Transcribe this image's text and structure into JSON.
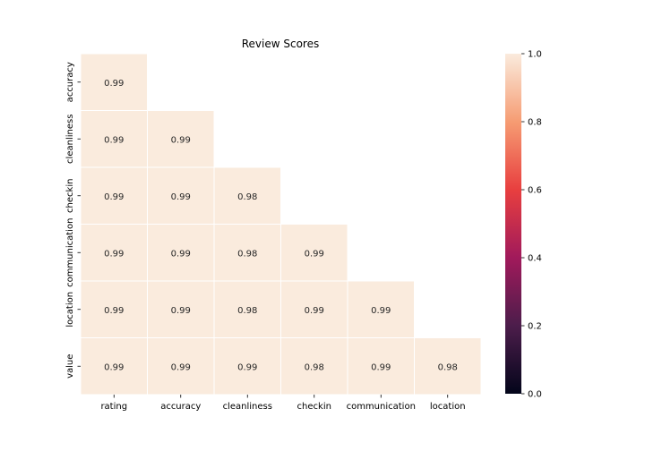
{
  "chart_data": {
    "type": "heatmap",
    "title": "Review Scores",
    "x_categories": [
      "rating",
      "accuracy",
      "cleanliness",
      "checkin",
      "communication",
      "location"
    ],
    "y_categories": [
      "accuracy",
      "cleanliness",
      "checkin",
      "communication",
      "location",
      "value"
    ],
    "values": [
      [
        0.99,
        null,
        null,
        null,
        null,
        null
      ],
      [
        0.99,
        0.99,
        null,
        null,
        null,
        null
      ],
      [
        0.99,
        0.99,
        0.98,
        null,
        null,
        null
      ],
      [
        0.99,
        0.99,
        0.98,
        0.99,
        null,
        null
      ],
      [
        0.99,
        0.99,
        0.98,
        0.99,
        0.99,
        null
      ],
      [
        0.99,
        0.99,
        0.99,
        0.98,
        0.99,
        0.98
      ]
    ],
    "value_labels": [
      [
        "0.99",
        "",
        "",
        "",
        "",
        ""
      ],
      [
        "0.99",
        "0.99",
        "",
        "",
        "",
        ""
      ],
      [
        "0.99",
        "0.99",
        "0.98",
        "",
        "",
        ""
      ],
      [
        "0.99",
        "0.99",
        "0.98",
        "0.99",
        "",
        ""
      ],
      [
        "0.99",
        "0.99",
        "0.98",
        "0.99",
        "0.99",
        ""
      ],
      [
        "0.99",
        "0.99",
        "0.99",
        "0.98",
        "0.99",
        "0.98"
      ]
    ],
    "mask": "upper-triangle",
    "colorbar": {
      "range": [
        0.0,
        1.0
      ],
      "ticks": [
        "0.0",
        "0.2",
        "0.4",
        "0.6",
        "0.8",
        "1.0"
      ],
      "colormap": "rocket",
      "colors": [
        "#03051a",
        "#4c1d4b",
        "#a11a5b",
        "#e83f3f",
        "#f69c73",
        "#faebdd"
      ]
    },
    "cell_color": "#faebdd",
    "cell_border_color": "#ffffff"
  }
}
